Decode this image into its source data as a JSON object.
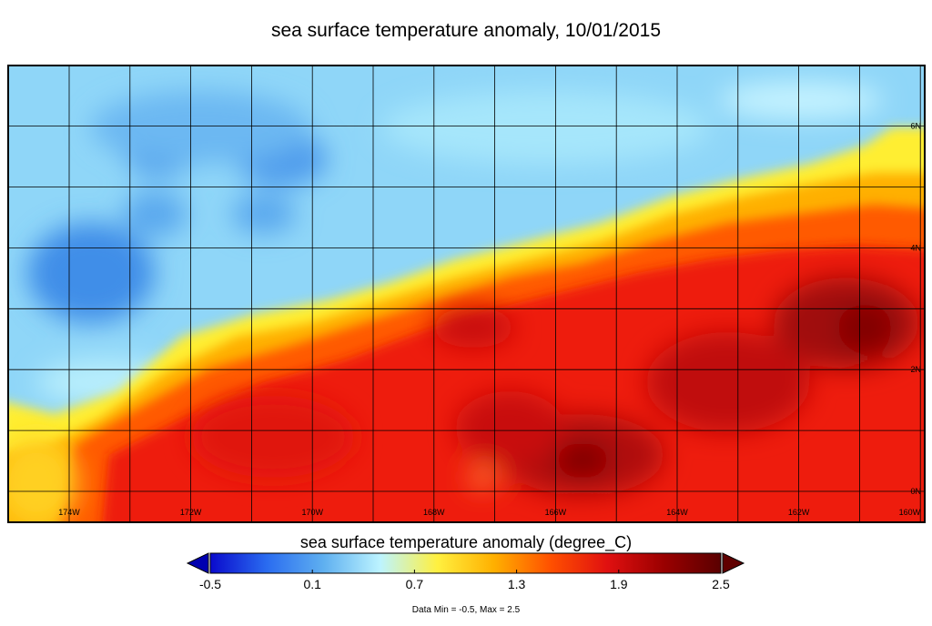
{
  "title": "sea surface temperature anomaly, 10/01/2015",
  "map": {
    "x_axis": {
      "ticks": [
        "174W",
        "172W",
        "170W",
        "168W",
        "166W",
        "164W",
        "162W",
        "160W"
      ]
    },
    "y_axis": {
      "ticks": [
        "0N",
        "2N",
        "4N",
        "6N"
      ]
    },
    "grid": true
  },
  "colorbar": {
    "title": "sea surface temperature anomaly (degree_C)",
    "ticks": [
      "-0.5",
      "0.1",
      "0.7",
      "1.3",
      "1.9",
      "2.5"
    ],
    "min": -0.5,
    "max": 2.5,
    "colors": [
      "#0a0acc",
      "#2a6cf0",
      "#5fb0f0",
      "#bdf4ff",
      "#fff040",
      "#ffb000",
      "#ff5000",
      "#e01010",
      "#9a0000",
      "#5a0000"
    ],
    "under_color": "#0000b0",
    "over_color": "#600000"
  },
  "data_range_text": "Data Min = -0.5, Max = 2.5"
}
